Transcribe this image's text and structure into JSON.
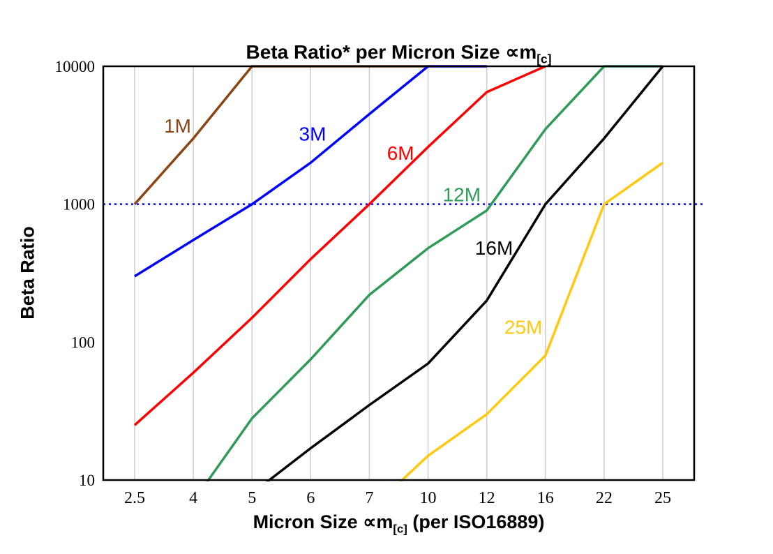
{
  "title": {
    "main": "Beta Ratio* per Micron Size ∝m",
    "sub": "[c]"
  },
  "y_axis": {
    "label": "Beta Ratio",
    "ticks": [
      10,
      100,
      1000,
      10000
    ]
  },
  "x_axis": {
    "label_pre": "Micron Size ∝m",
    "label_sub": "[c]",
    "label_post": " (per ISO16889)"
  },
  "chart_data": {
    "type": "line",
    "title": "Beta Ratio* per Micron Size ∝m[c]",
    "xlabel": "Micron Size ∝m[c] (per ISO16889)",
    "ylabel": "Beta Ratio",
    "x_scale": "categorical",
    "y_scale": "log",
    "ylim": [
      10,
      10000
    ],
    "grid": {
      "vertical": true,
      "horizontal": false,
      "color": "#cccccc"
    },
    "categories": [
      "2.5",
      "4",
      "5",
      "6",
      "7",
      "10",
      "12",
      "16",
      "22",
      "25"
    ],
    "series": [
      {
        "name": "1M",
        "color": "#8B4513",
        "values": [
          1000,
          3000,
          10000,
          10000,
          10000,
          10000,
          null,
          null,
          null,
          null
        ]
      },
      {
        "name": "3M",
        "color": "#0000FF",
        "values": [
          300,
          550,
          1000,
          2000,
          4500,
          10000,
          10000,
          null,
          null,
          null
        ]
      },
      {
        "name": "6M",
        "color": "#FF0000",
        "values": [
          25,
          60,
          150,
          400,
          1000,
          2600,
          6500,
          10000,
          null,
          null
        ]
      },
      {
        "name": "12M",
        "color": "#2E9B57",
        "values": [
          null,
          7,
          28,
          75,
          220,
          480,
          900,
          3500,
          10000,
          10000
        ]
      },
      {
        "name": "16M",
        "color": "#000000",
        "values": [
          null,
          null,
          8,
          17,
          35,
          70,
          200,
          1000,
          3000,
          10000
        ]
      },
      {
        "name": "25M",
        "color": "#FFC90E",
        "values": [
          null,
          null,
          null,
          null,
          6,
          15,
          30,
          80,
          1000,
          2000
        ]
      }
    ],
    "reference_line": {
      "value": 1000,
      "color": "#0000FF",
      "style": "dotted"
    },
    "series_labels": [
      {
        "text": "1M",
        "color": "#8B4513",
        "x_index": 0.5,
        "value": 3300
      },
      {
        "text": "3M",
        "color": "#0000FF",
        "x_index": 2.8,
        "value": 2900
      },
      {
        "text": "6M",
        "color": "#FF0000",
        "x_index": 4.3,
        "value": 2100
      },
      {
        "text": "12M",
        "color": "#2E9B57",
        "x_index": 5.25,
        "value": 1050
      },
      {
        "text": "16M",
        "color": "#000000",
        "x_index": 5.8,
        "value": 430
      },
      {
        "text": "25M",
        "color": "#FFC90E",
        "x_index": 6.3,
        "value": 115
      }
    ]
  }
}
